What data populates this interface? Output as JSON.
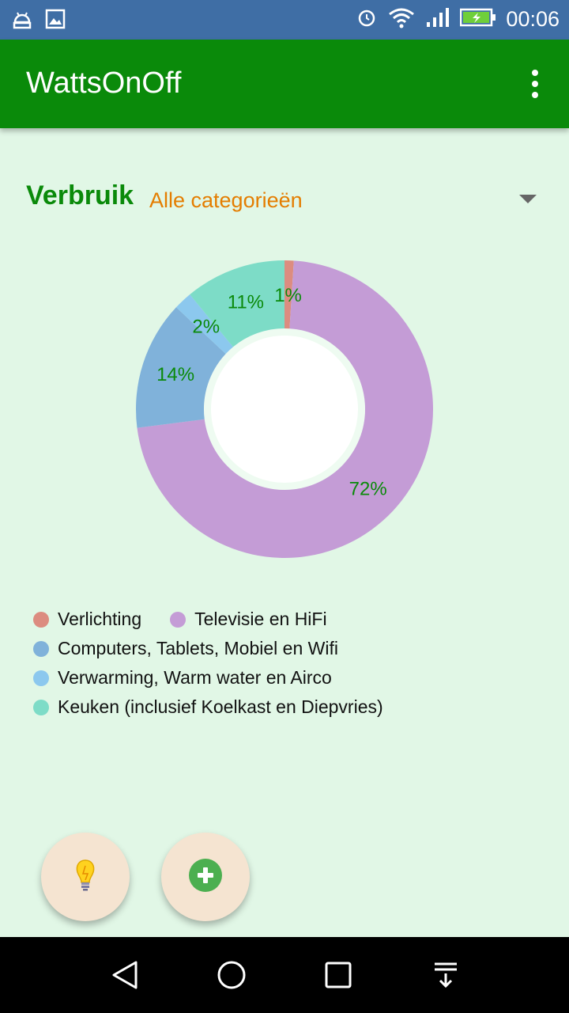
{
  "status_bar": {
    "time": "00:06",
    "icons": [
      "android-debug-icon",
      "image-icon",
      "alarm-icon",
      "wifi-icon",
      "signal-icon",
      "battery-charging-icon"
    ]
  },
  "app_bar": {
    "title": "WattsOnOff",
    "menu_icon": "overflow-menu-icon"
  },
  "content": {
    "heading": "Verbruik",
    "category_selected": "Alle categorieën"
  },
  "chart_data": {
    "type": "pie",
    "style": "donut",
    "slices": [
      {
        "label": "Verlichting",
        "value": 1,
        "value_label": "1%",
        "color": "#dc8c80"
      },
      {
        "label": "Televisie en HiFi",
        "value": 72,
        "value_label": "72%",
        "color": "#c49cd6"
      },
      {
        "label": "Computers, Tablets, Mobiel en Wifi",
        "value": 14,
        "value_label": "14%",
        "color": "#80b2da"
      },
      {
        "label": "Verwarming, Warm water en Airco",
        "value": 2,
        "value_label": "2%",
        "color": "#8cc8ee"
      },
      {
        "label": "Keuken (inclusief Koelkast en Diepvries)",
        "value": 11,
        "value_label": "11%",
        "color": "#7ddcc7"
      }
    ],
    "label_color": "#0a8a0a",
    "legend_position": "bottom"
  },
  "legend": [
    {
      "label": "Verlichting",
      "color": "#dc8c80"
    },
    {
      "label": "Televisie en HiFi",
      "color": "#c49cd6"
    },
    {
      "label": "Computers, Tablets, Mobiel en Wifi",
      "color": "#80b2da"
    },
    {
      "label": "Verwarming, Warm water en Airco",
      "color": "#8cc8ee"
    },
    {
      "label": "Keuken (inclusief Koelkast en Diepvries)",
      "color": "#7ddcc7"
    }
  ],
  "fabs": {
    "lamp_icon": "lightbulb-icon",
    "add_icon": "add-circle-icon"
  },
  "nav_bar": {
    "icons": [
      "back-icon",
      "home-icon",
      "recents-icon",
      "notification-pull-icon"
    ]
  },
  "colors": {
    "app_bar": "#0a8a0a",
    "background": "#e1f7e6",
    "accent": "#e47d00"
  }
}
